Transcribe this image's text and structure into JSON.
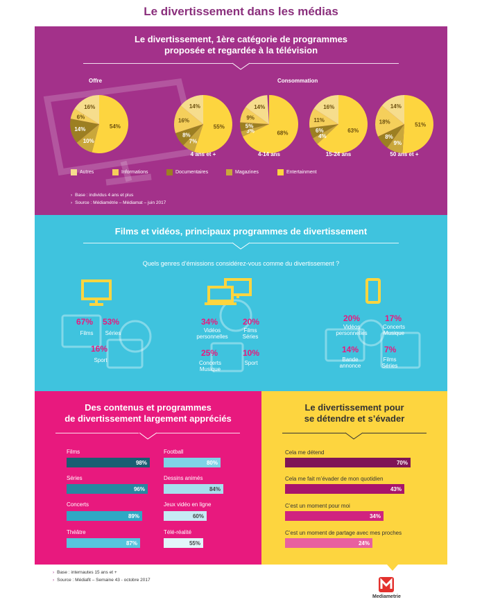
{
  "title": "Le divertissement dans les médias",
  "colors": {
    "purple": "#a3318a",
    "cyan": "#3fc3de",
    "pink": "#e8197e",
    "yellow": "#fdd53f",
    "autres": "#f6dd8d",
    "informations": "#f5cf5b",
    "documentaires": "#9c7f22",
    "magazines": "#c9a73b",
    "entertainment": "#fdd53f"
  },
  "section1": {
    "title_line1": "Le divertissement, 1ère catégorie de programmes",
    "title_line2": "proposée et regardée à la télévision",
    "offre_label": "Offre",
    "consommation_label": "Consommation",
    "legend": [
      "Autres",
      "Informations",
      "Documentaires",
      "Magazines",
      "Entertainment"
    ],
    "notes": [
      "Base : individus 4 ans et plus",
      "Source : Médiamétrie – Médiamat – juin 2017"
    ]
  },
  "chart_data": [
    {
      "type": "pie",
      "categories": [
        "Entertainment",
        "Magazines",
        "Documentaires",
        "Informations",
        "Autres"
      ],
      "pies": [
        {
          "label": "",
          "values": [
            54,
            10,
            14,
            6,
            16
          ]
        },
        {
          "label": "4 ans et +",
          "values": [
            55,
            7,
            8,
            16,
            14
          ]
        },
        {
          "label": "4-14 ans",
          "values": [
            68,
            3,
            5,
            9,
            14
          ]
        },
        {
          "label": "15-24 ans",
          "values": [
            63,
            4,
            6,
            11,
            16
          ]
        },
        {
          "label": "50 ans et +",
          "values": [
            51,
            9,
            8,
            18,
            14
          ]
        }
      ]
    },
    {
      "type": "bar",
      "categories": [
        "Films",
        "Séries",
        "Concerts",
        "Théâtre",
        "Football",
        "Dessins animés",
        "Jeux vidéo en ligne",
        "Télé-réalité"
      ],
      "values": [
        98,
        96,
        89,
        87,
        80,
        84,
        60,
        55
      ],
      "ylim": [
        0,
        100
      ]
    },
    {
      "type": "bar",
      "categories": [
        "Cela me détend",
        "Cela me fait m’évader de mon quotidien",
        "C’est un moment pour moi",
        "C’est un moment de partage avec mes proches"
      ],
      "values": [
        70,
        43,
        34,
        24
      ],
      "ylim": [
        0,
        100
      ]
    }
  ],
  "section2": {
    "title": "Films et vidéos, principaux programmes de divertissement",
    "question": "Quels genres d’émissions considérez-vous comme du divertissement ?",
    "tv": [
      {
        "pct": "67%",
        "label": "Films"
      },
      {
        "pct": "53%",
        "label": "Séries"
      },
      {
        "pct": "16%",
        "label": "Sport"
      }
    ],
    "computer": [
      {
        "pct": "34%",
        "label": "Vidéos personnelles"
      },
      {
        "pct": "20%",
        "label": "Films Séries"
      },
      {
        "pct": "25%",
        "label": "Concerts Musique"
      },
      {
        "pct": "10%",
        "label": "Sport"
      }
    ],
    "mobile": [
      {
        "pct": "20%",
        "label": "Vidéos personnelles"
      },
      {
        "pct": "17%",
        "label": "Concerts Musique"
      },
      {
        "pct": "14%",
        "label": "Bande annonce"
      },
      {
        "pct": "7%",
        "label": "Films Séries"
      }
    ]
  },
  "section3": {
    "title_line1": "Des contenus et programmes",
    "title_line2": "de divertissement largement appréciés",
    "bars_left": [
      {
        "label": "Films",
        "value": "98%"
      },
      {
        "label": "Séries",
        "value": "96%"
      },
      {
        "label": "Concerts",
        "value": "89%"
      },
      {
        "label": "Théâtre",
        "value": "87%"
      }
    ],
    "bars_right": [
      {
        "label": "Football",
        "value": "80%"
      },
      {
        "label": "Dessins animés",
        "value": "84%"
      },
      {
        "label": "Jeux vidéo en ligne",
        "value": "60%"
      },
      {
        "label": "Télé-réalité",
        "value": "55%"
      }
    ]
  },
  "section4": {
    "title_line1": "Le divertissement pour",
    "title_line2": "se détendre et s’évader",
    "bars": [
      {
        "label": "Cela me détend",
        "value": "70%"
      },
      {
        "label": "Cela me fait m’évader de mon quotidien",
        "value": "43%"
      },
      {
        "label": "C’est un moment pour moi",
        "value": "34%"
      },
      {
        "label": "C’est un moment de partage avec mes proches",
        "value": "24%"
      }
    ]
  },
  "footer": {
    "notes": [
      "Base : internautes 15 ans et +",
      "Source : Médiafit – Semaine 43 - octobre 2017"
    ],
    "logo": "Mediametrie"
  }
}
